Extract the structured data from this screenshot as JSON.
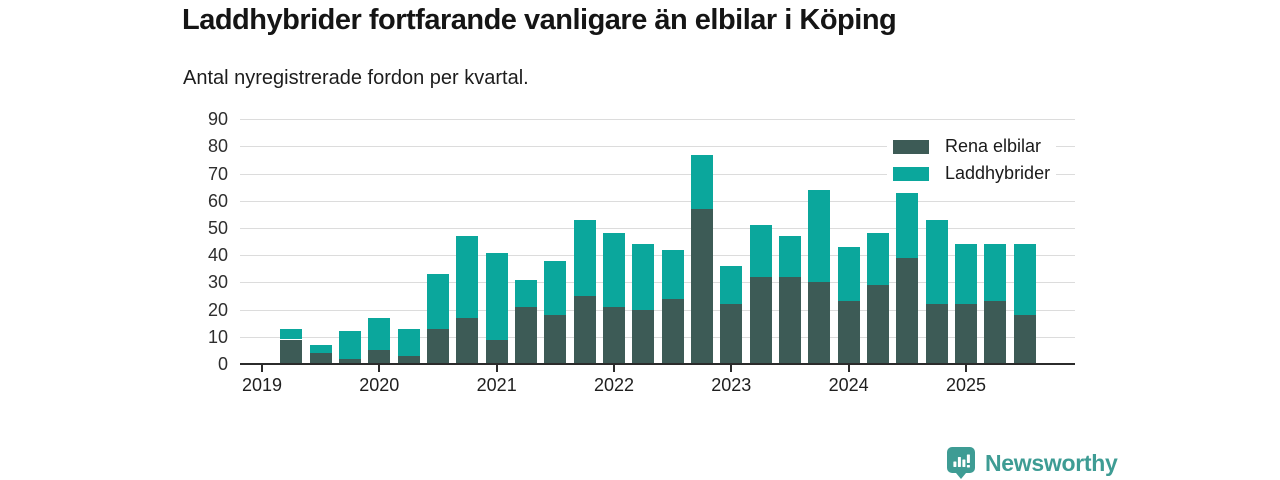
{
  "header": {
    "title": "Laddhybrider fortfarande vanligare än elbilar i Köping",
    "subtitle": "Antal nyregistrerade fordon per kvartal."
  },
  "chart_data": {
    "type": "bar",
    "stacked": true,
    "title": "Laddhybrider fortfarande vanligare än elbilar i Köping",
    "subtitle": "Antal nyregistrerade fordon per kvartal.",
    "categories": [
      "2019 Q2",
      "2019 Q3",
      "2019 Q4",
      "2020 Q1",
      "2020 Q2",
      "2020 Q3",
      "2020 Q4",
      "2021 Q1",
      "2021 Q2",
      "2021 Q3",
      "2021 Q4",
      "2022 Q1",
      "2022 Q2",
      "2022 Q3",
      "2022 Q4",
      "2023 Q1",
      "2023 Q2",
      "2023 Q3",
      "2023 Q4",
      "2024 Q1",
      "2024 Q2",
      "2024 Q3",
      "2024 Q4",
      "2025 Q1",
      "2025 Q2",
      "2025 Q3"
    ],
    "series": [
      {
        "name": "Rena elbilar",
        "color": "#3d5b56",
        "values": [
          9,
          4,
          2,
          5,
          3,
          13,
          17,
          9,
          21,
          18,
          25,
          21,
          20,
          24,
          57,
          22,
          32,
          32,
          30,
          23,
          29,
          39,
          22,
          22,
          23,
          18
        ]
      },
      {
        "name": "Laddhybrider",
        "color": "#0ba79c",
        "values": [
          4,
          3,
          10,
          12,
          10,
          20,
          30,
          32,
          10,
          20,
          28,
          27,
          24,
          18,
          20,
          14,
          19,
          15,
          34,
          20,
          19,
          24,
          31,
          22,
          21,
          26
        ]
      }
    ],
    "ylim": [
      0,
      90
    ],
    "yticks": [
      0,
      10,
      20,
      30,
      40,
      50,
      60,
      70,
      80,
      90
    ],
    "x_tick_labels": [
      "2019",
      "2020",
      "2021",
      "2022",
      "2023",
      "2024",
      "2025"
    ],
    "grid": "horizontal",
    "legend_position": "top-right"
  },
  "footer": {
    "brand": "Newsworthy",
    "brand_color": "#3e9c94",
    "logo_icon": "bar-chart-badge-icon"
  }
}
